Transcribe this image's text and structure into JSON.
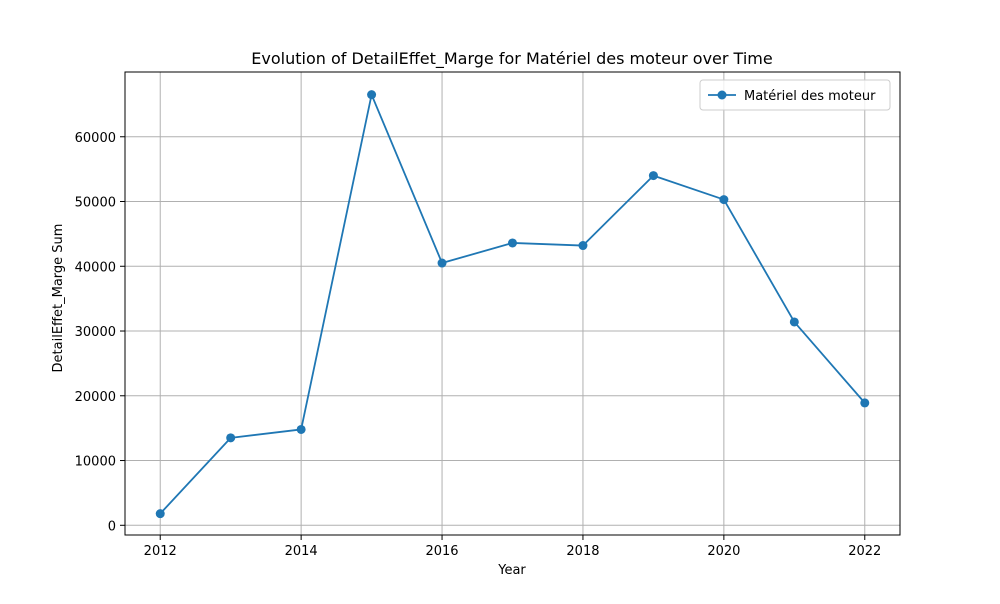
{
  "chart_data": {
    "type": "line",
    "title": "Evolution of DetailEffet_Marge for Matériel des moteur over Time",
    "xlabel": "Year",
    "ylabel": "DetailEffet_Marge Sum",
    "xlim": [
      2011.5,
      2022.5
    ],
    "ylim": [
      -1500,
      70000
    ],
    "x_ticks": [
      2012,
      2014,
      2016,
      2018,
      2020,
      2022
    ],
    "y_ticks": [
      0,
      10000,
      20000,
      30000,
      40000,
      50000,
      60000
    ],
    "grid": true,
    "legend_position": "top-right",
    "series": [
      {
        "name": "Matériel des moteur",
        "color": "#1f77b4",
        "marker": "circle",
        "x": [
          2012,
          2013,
          2014,
          2015,
          2016,
          2017,
          2018,
          2019,
          2020,
          2021,
          2022
        ],
        "y": [
          1800,
          13500,
          14800,
          66500,
          40500,
          43600,
          43200,
          54000,
          50300,
          31400,
          18900
        ]
      }
    ]
  },
  "colors": {
    "background": "#ffffff",
    "grid": "#b0b0b0",
    "axes": "#000000",
    "series": "#1f77b4"
  }
}
